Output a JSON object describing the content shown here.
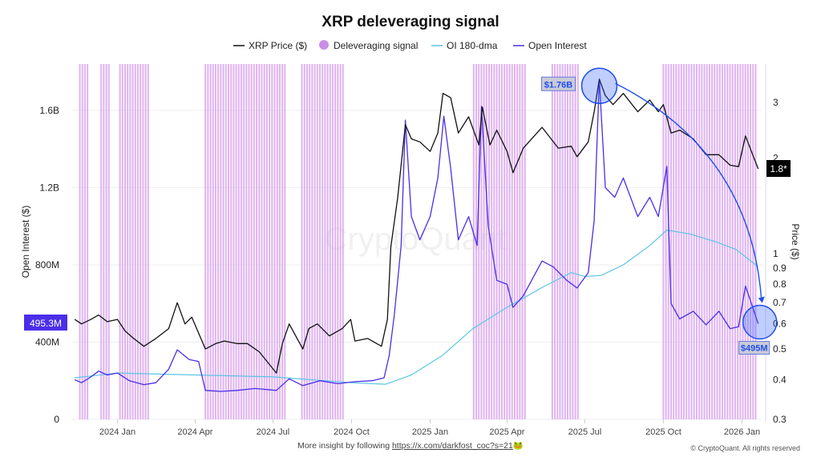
{
  "chart_data": {
    "type": "line",
    "title": "XRP deleveraging signal",
    "legend": {
      "placement": "top",
      "items": [
        {
          "label": "XRP Price ($)",
          "color": "#111111",
          "shape": "line"
        },
        {
          "label": "Deleveraging signal",
          "color": "#c98ee6",
          "shape": "circle"
        },
        {
          "label": "OI 180-dma",
          "color": "#5bc4e6",
          "shape": "line"
        },
        {
          "label": "Open Interest",
          "color": "#4b2ee8",
          "shape": "line"
        }
      ]
    },
    "ylabel_left": "Open Interest ($)",
    "ylabel_right": "Price ($)",
    "xlim": [
      "2023-11-09",
      "2026-01-24"
    ],
    "ylim_left": [
      0,
      1840000000
    ],
    "ylim_right": [
      0.3,
      3.96
    ],
    "right_scale": "log",
    "grid": true,
    "x_ticks": [
      {
        "date": "2024-01-01",
        "label": "2024 Jan"
      },
      {
        "date": "2024-04-01",
        "label": "2024 Apr"
      },
      {
        "date": "2024-07-01",
        "label": "2024 Jul"
      },
      {
        "date": "2024-10-01",
        "label": "2024 Oct"
      },
      {
        "date": "2025-01-01",
        "label": "2025 Jan"
      },
      {
        "date": "2025-04-01",
        "label": "2025 Apr"
      },
      {
        "date": "2025-07-01",
        "label": "2025 Jul"
      },
      {
        "date": "2025-10-01",
        "label": "2025 Oct"
      },
      {
        "date": "2026-01-01",
        "label": "2026 Jan"
      }
    ],
    "left_ticks": [
      {
        "value": 0,
        "label": "0"
      },
      {
        "value": 400000000,
        "label": "400M"
      },
      {
        "value": 800000000,
        "label": "800M"
      },
      {
        "value": 1200000000,
        "label": "1.2B"
      },
      {
        "value": 1600000000,
        "label": "1.6B"
      }
    ],
    "right_ticks": [
      {
        "value": 0.3,
        "label": "0.3"
      },
      {
        "value": 0.4,
        "label": "0.4"
      },
      {
        "value": 0.5,
        "label": "0.5"
      },
      {
        "value": 0.6,
        "label": "0.6"
      },
      {
        "value": 0.7,
        "label": "0.7"
      },
      {
        "value": 0.8,
        "label": "0.8"
      },
      {
        "value": 0.9,
        "label": "0.9"
      },
      {
        "value": 1,
        "label": "1"
      },
      {
        "value": 2,
        "label": "2"
      },
      {
        "value": 3,
        "label": "3"
      }
    ],
    "series": [
      {
        "name": "XRP Price ($)",
        "axis": "right",
        "color": "#111111",
        "points": [
          [
            "2023-11-12",
            0.62
          ],
          [
            "2023-11-20",
            0.6
          ],
          [
            "2023-12-01",
            0.62
          ],
          [
            "2023-12-10",
            0.64
          ],
          [
            "2023-12-20",
            0.61
          ],
          [
            "2024-01-01",
            0.62
          ],
          [
            "2024-01-10",
            0.57
          ],
          [
            "2024-01-20",
            0.54
          ],
          [
            "2024-02-01",
            0.51
          ],
          [
            "2024-02-15",
            0.54
          ],
          [
            "2024-03-01",
            0.58
          ],
          [
            "2024-03-11",
            0.7
          ],
          [
            "2024-03-20",
            0.6
          ],
          [
            "2024-03-28",
            0.63
          ],
          [
            "2024-04-13",
            0.5
          ],
          [
            "2024-04-25",
            0.52
          ],
          [
            "2024-05-05",
            0.53
          ],
          [
            "2024-05-20",
            0.52
          ],
          [
            "2024-06-01",
            0.52
          ],
          [
            "2024-06-15",
            0.49
          ],
          [
            "2024-07-05",
            0.42
          ],
          [
            "2024-07-12",
            0.52
          ],
          [
            "2024-07-20",
            0.6
          ],
          [
            "2024-08-05",
            0.5
          ],
          [
            "2024-08-12",
            0.58
          ],
          [
            "2024-08-22",
            0.6
          ],
          [
            "2024-09-05",
            0.55
          ],
          [
            "2024-09-20",
            0.58
          ],
          [
            "2024-09-30",
            0.62
          ],
          [
            "2024-10-05",
            0.53
          ],
          [
            "2024-10-20",
            0.54
          ],
          [
            "2024-11-05",
            0.51
          ],
          [
            "2024-11-12",
            0.62
          ],
          [
            "2024-11-16",
            1.05
          ],
          [
            "2024-11-24",
            1.5
          ],
          [
            "2024-12-03",
            2.55
          ],
          [
            "2024-12-10",
            2.3
          ],
          [
            "2024-12-20",
            2.25
          ],
          [
            "2025-01-01",
            2.1
          ],
          [
            "2025-01-10",
            2.4
          ],
          [
            "2025-01-16",
            3.2
          ],
          [
            "2025-01-25",
            3.1
          ],
          [
            "2025-02-03",
            2.4
          ],
          [
            "2025-02-15",
            2.7
          ],
          [
            "2025-02-27",
            2.2
          ],
          [
            "2025-03-03",
            2.9
          ],
          [
            "2025-03-12",
            2.2
          ],
          [
            "2025-03-20",
            2.45
          ],
          [
            "2025-04-01",
            2.1
          ],
          [
            "2025-04-08",
            1.8
          ],
          [
            "2025-04-20",
            2.15
          ],
          [
            "2025-05-12",
            2.5
          ],
          [
            "2025-05-31",
            2.15
          ],
          [
            "2025-06-15",
            2.18
          ],
          [
            "2025-06-22",
            2.02
          ],
          [
            "2025-07-05",
            2.25
          ],
          [
            "2025-07-12",
            2.8
          ],
          [
            "2025-07-18",
            3.55
          ],
          [
            "2025-07-25",
            3.15
          ],
          [
            "2025-08-03",
            2.95
          ],
          [
            "2025-08-15",
            3.2
          ],
          [
            "2025-09-01",
            2.8
          ],
          [
            "2025-09-15",
            3.05
          ],
          [
            "2025-09-25",
            2.8
          ],
          [
            "2025-10-01",
            2.95
          ],
          [
            "2025-10-10",
            2.4
          ],
          [
            "2025-10-20",
            2.45
          ],
          [
            "2025-11-05",
            2.3
          ],
          [
            "2025-11-20",
            2.05
          ],
          [
            "2025-12-05",
            2.05
          ],
          [
            "2025-12-18",
            1.9
          ],
          [
            "2025-12-28",
            1.88
          ],
          [
            "2026-01-05",
            2.35
          ],
          [
            "2026-01-12",
            2.1
          ],
          [
            "2026-01-20",
            1.85
          ]
        ]
      },
      {
        "name": "OI 180-dma",
        "axis": "left",
        "color": "#5bc4e6",
        "points": [
          [
            "2023-11-12",
            215000000
          ],
          [
            "2024-01-01",
            240000000
          ],
          [
            "2024-04-01",
            230000000
          ],
          [
            "2024-07-01",
            220000000
          ],
          [
            "2024-10-01",
            190000000
          ],
          [
            "2024-11-10",
            182000000
          ],
          [
            "2024-12-10",
            230000000
          ],
          [
            "2025-01-15",
            330000000
          ],
          [
            "2025-02-20",
            470000000
          ],
          [
            "2025-04-01",
            580000000
          ],
          [
            "2025-05-15",
            690000000
          ],
          [
            "2025-06-15",
            760000000
          ],
          [
            "2025-07-01",
            740000000
          ],
          [
            "2025-07-20",
            745000000
          ],
          [
            "2025-08-15",
            800000000
          ],
          [
            "2025-09-15",
            900000000
          ],
          [
            "2025-10-05",
            980000000
          ],
          [
            "2025-11-01",
            960000000
          ],
          [
            "2025-12-01",
            920000000
          ],
          [
            "2025-12-25",
            880000000
          ],
          [
            "2026-01-20",
            790000000
          ]
        ]
      },
      {
        "name": "Open Interest",
        "axis": "left",
        "color": "#4b2ee8",
        "points": [
          [
            "2023-11-12",
            205000000
          ],
          [
            "2023-11-20",
            190000000
          ],
          [
            "2023-12-01",
            220000000
          ],
          [
            "2023-12-10",
            250000000
          ],
          [
            "2023-12-20",
            230000000
          ],
          [
            "2024-01-01",
            240000000
          ],
          [
            "2024-01-15",
            200000000
          ],
          [
            "2024-02-01",
            180000000
          ],
          [
            "2024-02-15",
            190000000
          ],
          [
            "2024-03-01",
            260000000
          ],
          [
            "2024-03-11",
            360000000
          ],
          [
            "2024-03-25",
            310000000
          ],
          [
            "2024-04-05",
            300000000
          ],
          [
            "2024-04-13",
            150000000
          ],
          [
            "2024-05-01",
            145000000
          ],
          [
            "2024-05-20",
            150000000
          ],
          [
            "2024-06-10",
            160000000
          ],
          [
            "2024-07-05",
            150000000
          ],
          [
            "2024-07-20",
            210000000
          ],
          [
            "2024-08-05",
            175000000
          ],
          [
            "2024-08-25",
            200000000
          ],
          [
            "2024-09-15",
            185000000
          ],
          [
            "2024-10-05",
            195000000
          ],
          [
            "2024-10-25",
            200000000
          ],
          [
            "2024-11-08",
            215000000
          ],
          [
            "2024-11-14",
            330000000
          ],
          [
            "2024-11-20",
            540000000
          ],
          [
            "2024-11-28",
            900000000
          ],
          [
            "2024-12-03",
            1550000000
          ],
          [
            "2024-12-10",
            1050000000
          ],
          [
            "2024-12-20",
            930000000
          ],
          [
            "2025-01-01",
            1050000000
          ],
          [
            "2025-01-10",
            1250000000
          ],
          [
            "2025-01-17",
            1570000000
          ],
          [
            "2025-01-25",
            1300000000
          ],
          [
            "2025-02-03",
            930000000
          ],
          [
            "2025-02-15",
            1050000000
          ],
          [
            "2025-02-25",
            900000000
          ],
          [
            "2025-03-02",
            1620000000
          ],
          [
            "2025-03-10",
            1000000000
          ],
          [
            "2025-03-20",
            720000000
          ],
          [
            "2025-04-01",
            700000000
          ],
          [
            "2025-04-08",
            580000000
          ],
          [
            "2025-04-20",
            640000000
          ],
          [
            "2025-05-12",
            820000000
          ],
          [
            "2025-05-25",
            790000000
          ],
          [
            "2025-06-10",
            720000000
          ],
          [
            "2025-06-22",
            680000000
          ],
          [
            "2025-07-05",
            760000000
          ],
          [
            "2025-07-12",
            1030000000
          ],
          [
            "2025-07-18",
            1760000000
          ],
          [
            "2025-07-25",
            1200000000
          ],
          [
            "2025-08-05",
            1150000000
          ],
          [
            "2025-08-15",
            1250000000
          ],
          [
            "2025-09-01",
            1050000000
          ],
          [
            "2025-09-15",
            1150000000
          ],
          [
            "2025-09-25",
            1050000000
          ],
          [
            "2025-10-05",
            1310000000
          ],
          [
            "2025-10-10",
            600000000
          ],
          [
            "2025-10-20",
            520000000
          ],
          [
            "2025-11-05",
            560000000
          ],
          [
            "2025-11-20",
            490000000
          ],
          [
            "2025-12-05",
            560000000
          ],
          [
            "2025-12-18",
            470000000
          ],
          [
            "2025-12-28",
            480000000
          ],
          [
            "2026-01-05",
            690000000
          ],
          [
            "2026-01-12",
            600000000
          ],
          [
            "2026-01-20",
            495000000
          ]
        ]
      }
    ],
    "deleveraging_signal_ranges": [
      [
        "2023-11-17",
        "2023-11-26"
      ],
      [
        "2023-12-12",
        "2023-12-22"
      ],
      [
        "2024-01-03",
        "2024-02-07"
      ],
      [
        "2024-04-12",
        "2024-07-15"
      ],
      [
        "2024-08-03",
        "2024-09-22"
      ],
      [
        "2025-02-20",
        "2025-04-21"
      ],
      [
        "2025-05-23",
        "2025-06-24"
      ],
      [
        "2025-09-30",
        "2026-01-18"
      ]
    ],
    "annotations": {
      "peak_label": "$1.76B",
      "peak_date": "2025-07-18",
      "peak_value": 1760000000,
      "end_label": "$495M",
      "end_date": "2026-01-20",
      "end_value": 495000000,
      "current_oi_label": "495.3M",
      "current_price_label": "1.8*"
    },
    "watermark": "CryptoQuant"
  },
  "footer": {
    "prefix": "More insight by following ",
    "link": "https://x.com/darkfost_coc?s=21",
    "emoji": "🐸",
    "copyright": "© CryptoQuant. All rights reserved"
  }
}
